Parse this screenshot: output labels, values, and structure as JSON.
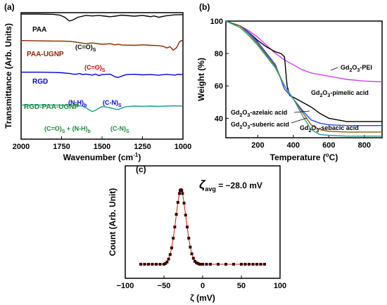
{
  "chart_data": [
    {
      "panel": "(a)",
      "type": "line",
      "xlabel": "Wavenumber (cm⁻¹)",
      "ylabel": "Transmittance (Arb. Units)",
      "xlim": [
        2000,
        1000
      ],
      "x_reversed": true,
      "x_ticks": [
        "2000",
        "1750",
        "1500",
        "1250",
        "1000"
      ],
      "y_units": "arbitrary (stacked offsets)",
      "series": [
        {
          "name": "PAA",
          "color": "#000000",
          "x": [
            2000,
            1900,
            1800,
            1760,
            1730,
            1710,
            1700,
            1680,
            1650,
            1600,
            1560,
            1520,
            1480,
            1450,
            1420,
            1400,
            1380,
            1300,
            1250,
            1220,
            1200,
            1180,
            1160,
            1150,
            1100,
            1050,
            1000
          ],
          "y": [
            100,
            100,
            99,
            96,
            88,
            78,
            74,
            78,
            88,
            95,
            93,
            95,
            92,
            90,
            92,
            94,
            96,
            92,
            95,
            92,
            90,
            93,
            90,
            88,
            94,
            97,
            98
          ]
        },
        {
          "name": "PAA-UGNP",
          "color": "#8b2500",
          "x": [
            2000,
            1900,
            1800,
            1750,
            1700,
            1650,
            1600,
            1560,
            1500,
            1450,
            1420,
            1400,
            1380,
            1300,
            1250,
            1200,
            1150,
            1120,
            1100,
            1080,
            1060,
            1040,
            1020,
            1000
          ],
          "y": [
            64,
            63,
            62,
            62,
            61,
            57,
            52,
            55,
            50,
            52,
            48,
            50,
            47,
            46,
            48,
            46,
            45,
            42,
            36,
            41,
            28,
            37,
            60,
            66
          ]
        },
        {
          "name": "RGD",
          "color": "#0000e0",
          "x": [
            2000,
            1900,
            1800,
            1750,
            1700,
            1680,
            1660,
            1640,
            1620,
            1600,
            1560,
            1540,
            1520,
            1500,
            1450,
            1420,
            1400,
            1380,
            1350,
            1300,
            1250,
            1200,
            1150,
            1100,
            1050,
            1030,
            1000
          ],
          "y": [
            35,
            35,
            34,
            33,
            30,
            28,
            27,
            30,
            26,
            28,
            24,
            28,
            22,
            26,
            28,
            18,
            15,
            20,
            26,
            27,
            25,
            26,
            24,
            27,
            24,
            27,
            26
          ]
        },
        {
          "name": "RGD-PAA-UGNP",
          "color": "#1a9a8a",
          "x": [
            2000,
            1900,
            1800,
            1700,
            1650,
            1620,
            1600,
            1580,
            1560,
            1540,
            1520,
            1500,
            1480,
            1450,
            1430,
            1400,
            1380,
            1350,
            1300,
            1250,
            1200,
            1150,
            1100,
            1050,
            1000
          ],
          "y": [
            12,
            12,
            12,
            11,
            10,
            8,
            2,
            -6,
            -12,
            -8,
            0,
            6,
            5,
            2,
            -2,
            -5,
            0,
            6,
            8,
            7,
            8,
            7,
            8,
            9,
            8
          ]
        }
      ],
      "annotations": [
        "(C=O)s",
        "(C=O)s",
        "(N-H)b",
        "(C-N)s",
        "(C=O)s + (N-H)b",
        "(C-N)s"
      ]
    },
    {
      "panel": "(b)",
      "type": "line",
      "xlabel": "Temperature (°C)",
      "ylabel": "Weight (%)",
      "xlim": [
        20,
        900
      ],
      "ylim": [
        28,
        100
      ],
      "x_ticks": [
        200,
        400,
        600,
        800
      ],
      "y_ticks": [
        40,
        60,
        80,
        100
      ],
      "series": [
        {
          "name": "Gd2O3-PEI",
          "color": "#cc44ee",
          "x": [
            20,
            100,
            150,
            200,
            250,
            300,
            350,
            400,
            450,
            500,
            600,
            700,
            800,
            900
          ],
          "y": [
            100,
            97,
            94,
            90,
            85,
            80,
            76,
            73,
            70,
            68,
            66,
            64,
            63,
            62.5
          ]
        },
        {
          "name": "Gd2O3-pimelic acid",
          "color": "#000000",
          "x": [
            20,
            100,
            150,
            200,
            250,
            300,
            330,
            350,
            365,
            380,
            400,
            450,
            500,
            550,
            600,
            700,
            800,
            900
          ],
          "y": [
            100,
            97,
            93,
            88,
            84,
            81,
            80,
            78,
            60,
            54,
            53,
            50,
            47,
            43,
            40,
            38,
            38,
            38
          ]
        },
        {
          "name": "Gd2O3-azelaic acid",
          "color": "#2244ff",
          "x": [
            20,
            100,
            150,
            200,
            250,
            300,
            350,
            400,
            450,
            500,
            550,
            600,
            700,
            800,
            900
          ],
          "y": [
            100,
            97,
            93,
            87,
            80,
            73,
            58,
            52,
            45,
            39,
            37,
            36,
            35.5,
            35.5,
            35.5
          ]
        },
        {
          "name": "Gd2O3-suberic acid",
          "color": "#8b5a00",
          "x": [
            20,
            100,
            150,
            200,
            250,
            300,
            350,
            400,
            450,
            500,
            550,
            600,
            700,
            800,
            900
          ],
          "y": [
            100,
            97,
            92,
            86,
            79,
            72,
            60,
            52,
            44,
            36,
            33,
            32,
            31.5,
            31.5,
            31.5
          ]
        },
        {
          "name": "Gd2O3-sebacic acid",
          "color": "#2aa198",
          "x": [
            20,
            100,
            150,
            200,
            250,
            300,
            350,
            400,
            450,
            500,
            550,
            600,
            700,
            800,
            900
          ],
          "y": [
            100,
            96,
            91,
            85,
            78,
            71,
            60,
            52,
            42,
            33,
            30,
            29.5,
            29,
            29,
            29
          ]
        }
      ],
      "labels": [
        "Gd₂O₃-PEI",
        "Gd₂O₃-pimelic acid",
        "Gd₂O₃-azelaic acid",
        "Gd₂O₃-suberic acid",
        "Gd₂O₃-sebacic acid"
      ]
    },
    {
      "panel": "(c)",
      "type": "scatter",
      "xlabel": "ζ (mV)",
      "ylabel": "Count (Arb. Unit)",
      "xlim": [
        -100,
        100
      ],
      "x_ticks": [
        -100,
        -50,
        0,
        50,
        100
      ],
      "annotation": "ζavg = −28.0 mV",
      "series": [
        {
          "name": "zeta distribution",
          "color": "#3a0a00",
          "x": [
            -80,
            -75,
            -70,
            -65,
            -60,
            -55,
            -50,
            -48,
            -46,
            -44,
            -42,
            -40,
            -38,
            -36,
            -34,
            -32,
            -30,
            -29,
            -28,
            -27,
            -26,
            -24,
            -22,
            -20,
            -18,
            -16,
            -14,
            -12,
            -10,
            -8,
            -6,
            -4,
            -2,
            0,
            5,
            10,
            20,
            30,
            40,
            50,
            55,
            60,
            65,
            70,
            75,
            80
          ],
          "y": [
            0,
            0,
            0,
            0,
            0,
            0,
            0,
            0.01,
            0.03,
            0.07,
            0.13,
            0.22,
            0.35,
            0.5,
            0.67,
            0.83,
            0.95,
            0.99,
            1.0,
            0.99,
            0.95,
            0.82,
            0.66,
            0.5,
            0.35,
            0.23,
            0.14,
            0.08,
            0.04,
            0.02,
            0.01,
            0,
            0,
            0,
            0,
            0,
            0,
            0,
            0,
            0,
            0,
            0,
            0,
            0,
            0,
            0
          ]
        }
      ]
    }
  ],
  "text": {
    "a_label": "(a)",
    "b_label": "(b)",
    "c_label": "(c)",
    "a_xlabel": "Wavenumber (cm",
    "a_xlabel_sup": "-1",
    "a_xlabel_end": ")",
    "a_ylabel": "Transmittance (Arb. Units)",
    "b_xlabel": "Temperature (",
    "b_xlabel_deg": "o",
    "b_xlabel_end": "C)",
    "b_ylabel": "Weight (%)",
    "c_xlabel": "ζ (mV)",
    "c_ylabel": "Count (Arb. Unit)",
    "c_zeta": "ζ",
    "c_avg": "avg",
    "c_value": " = −28.0 mV"
  }
}
